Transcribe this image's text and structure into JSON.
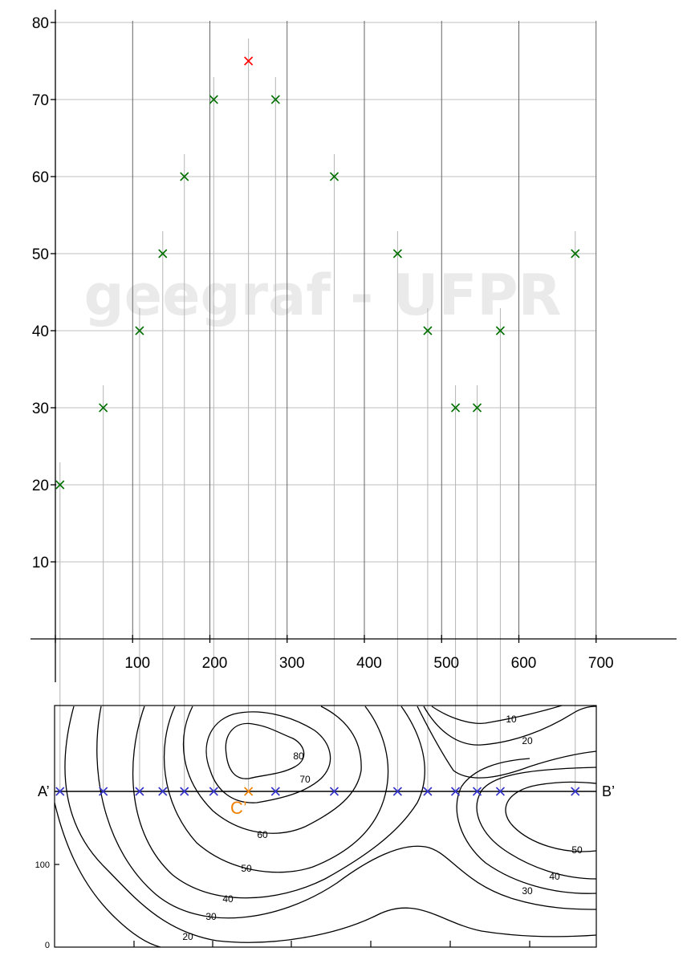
{
  "chart_data": {
    "type": "scatter",
    "title": "",
    "watermark": "geegraf - UFPR",
    "xlabel": "",
    "ylabel": "",
    "xlim": [
      -10,
      810
    ],
    "ylim": [
      0,
      80
    ],
    "x_ticks": [
      100,
      200,
      300,
      400,
      500,
      600,
      700
    ],
    "y_ticks": [
      10,
      20,
      30,
      40,
      50,
      60,
      70,
      80
    ],
    "grid": true,
    "points_color": "#007000",
    "highlight_color": "#ff0000",
    "series": [
      {
        "values": [
          {
            "x": 6,
            "y": 20
          },
          {
            "x": 62,
            "y": 30
          },
          {
            "x": 109,
            "y": 40
          },
          {
            "x": 139,
            "y": 50
          },
          {
            "x": 167,
            "y": 60
          },
          {
            "x": 205,
            "y": 70
          },
          {
            "x": 285,
            "y": 70
          },
          {
            "x": 361,
            "y": 60
          },
          {
            "x": 443,
            "y": 50
          },
          {
            "x": 482,
            "y": 40
          },
          {
            "x": 518,
            "y": 30
          },
          {
            "x": 546,
            "y": 30
          },
          {
            "x": 576,
            "y": 40
          },
          {
            "x": 673,
            "y": 50
          }
        ]
      },
      {
        "values": [
          {
            "x": 250,
            "y": 75
          }
        ]
      }
    ]
  },
  "contour_map": {
    "section_start_label": "A’",
    "section_end_label": "B’",
    "highlight_label": "C’",
    "highlight_x": 250,
    "section_marker_color": "#3333cc",
    "highlight_marker_color": "#f08000",
    "y_labels": [
      "100",
      "0"
    ],
    "contour_labels": [
      "10",
      "20",
      "80",
      "70",
      "60",
      "50",
      "40",
      "30",
      "20",
      "50",
      "40",
      "30"
    ]
  }
}
